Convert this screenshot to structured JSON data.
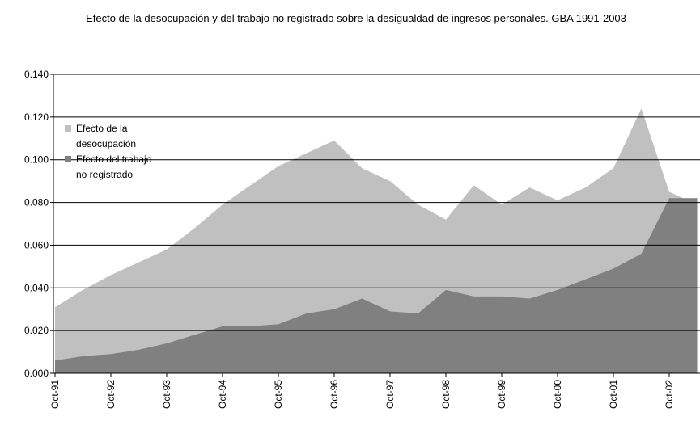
{
  "chart_data": {
    "type": "area",
    "title": "Efecto de la desocupación y del trabajo no registrado sobre la desigualdad de ingresos personales. GBA 1991-2003",
    "categories": [
      "Oct-91",
      null,
      "Oct-92",
      null,
      "Oct-93",
      null,
      "Oct-94",
      null,
      "Oct-95",
      null,
      "Oct-96",
      null,
      "Oct-97",
      null,
      "Oct-98",
      null,
      "Oct-99",
      null,
      "Oct-00",
      null,
      "Oct-01",
      null,
      "Oct-02",
      null
    ],
    "series": [
      {
        "name": "Efecto de la desocupación",
        "color": "#c0c0c0",
        "values": [
          0.031,
          0.039,
          0.046,
          0.052,
          0.058,
          0.068,
          0.079,
          0.088,
          0.097,
          0.103,
          0.109,
          0.096,
          0.09,
          0.079,
          0.072,
          0.088,
          0.079,
          0.087,
          0.081,
          0.087,
          0.096,
          0.124,
          0.085,
          0.079
        ]
      },
      {
        "name": "Efecto del trabajo no registrado",
        "color": "#808080",
        "values": [
          0.006,
          0.008,
          0.009,
          0.011,
          0.014,
          0.018,
          0.022,
          0.022,
          0.023,
          0.028,
          0.03,
          0.035,
          0.029,
          0.028,
          0.039,
          0.036,
          0.036,
          0.035,
          0.039,
          0.044,
          0.049,
          0.056,
          0.082,
          0.082
        ]
      }
    ],
    "ylim": [
      0,
      0.14
    ],
    "yticks": [
      {
        "value": 0,
        "label": "0.000"
      },
      {
        "value": 0.02,
        "label": "0.020"
      },
      {
        "value": 0.04,
        "label": "0.040"
      },
      {
        "value": 0.06,
        "label": "0.060"
      },
      {
        "value": 0.08,
        "label": "0.080"
      },
      {
        "value": 0.1,
        "label": "0.100"
      },
      {
        "value": 0.12,
        "label": "0.120"
      },
      {
        "value": 0.14,
        "label": "0.140"
      }
    ],
    "grid": true,
    "legend": "upper left"
  }
}
